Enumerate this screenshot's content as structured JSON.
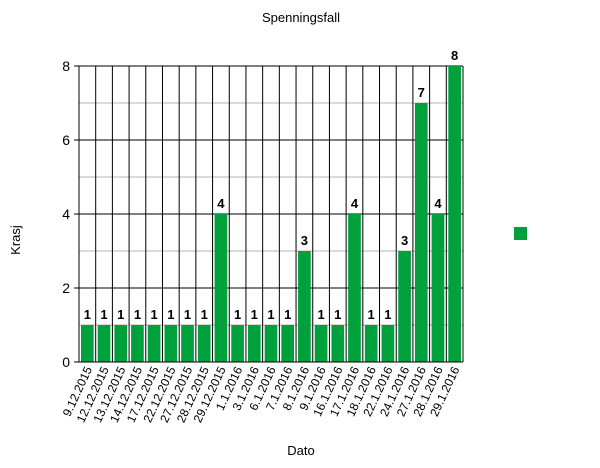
{
  "chart_data": {
    "type": "bar",
    "title": "Spenningsfall",
    "xlabel": "Dato",
    "ylabel": "Krasj",
    "ylim": [
      0,
      8
    ],
    "yticks": [
      "0",
      "2",
      "4",
      "6",
      "8"
    ],
    "grid": true,
    "legend_position": "right",
    "bar_color": "#00a03c",
    "categories": [
      "9.12.2015",
      "12.12.2015",
      "13.12.2015",
      "14.12.2015",
      "17.12.2015",
      "22.12.2015",
      "27.12.2015",
      "28.12.2015",
      "29.12.2015",
      "1.1.2016",
      "3.1.2016",
      "6.1.2016",
      "7.1.2016",
      "8.1.2016",
      "9.1.2016",
      "16.1.2016",
      "17.1.2016",
      "18.1.2016",
      "22.1.2016",
      "24.1.2016",
      "27.1.2016",
      "28.1.2016",
      "29.1.2016"
    ],
    "values": [
      1,
      1,
      1,
      1,
      1,
      1,
      1,
      1,
      4,
      1,
      1,
      1,
      1,
      3,
      1,
      1,
      4,
      1,
      1,
      3,
      7,
      4,
      8
    ],
    "value_labels": [
      "1",
      "1",
      "1",
      "1",
      "1",
      "1",
      "1",
      "1",
      "4",
      "1",
      "1",
      "1",
      "1",
      "3",
      "1",
      "1",
      "4",
      "1",
      "1",
      "3",
      "7",
      "4",
      "8"
    ]
  }
}
